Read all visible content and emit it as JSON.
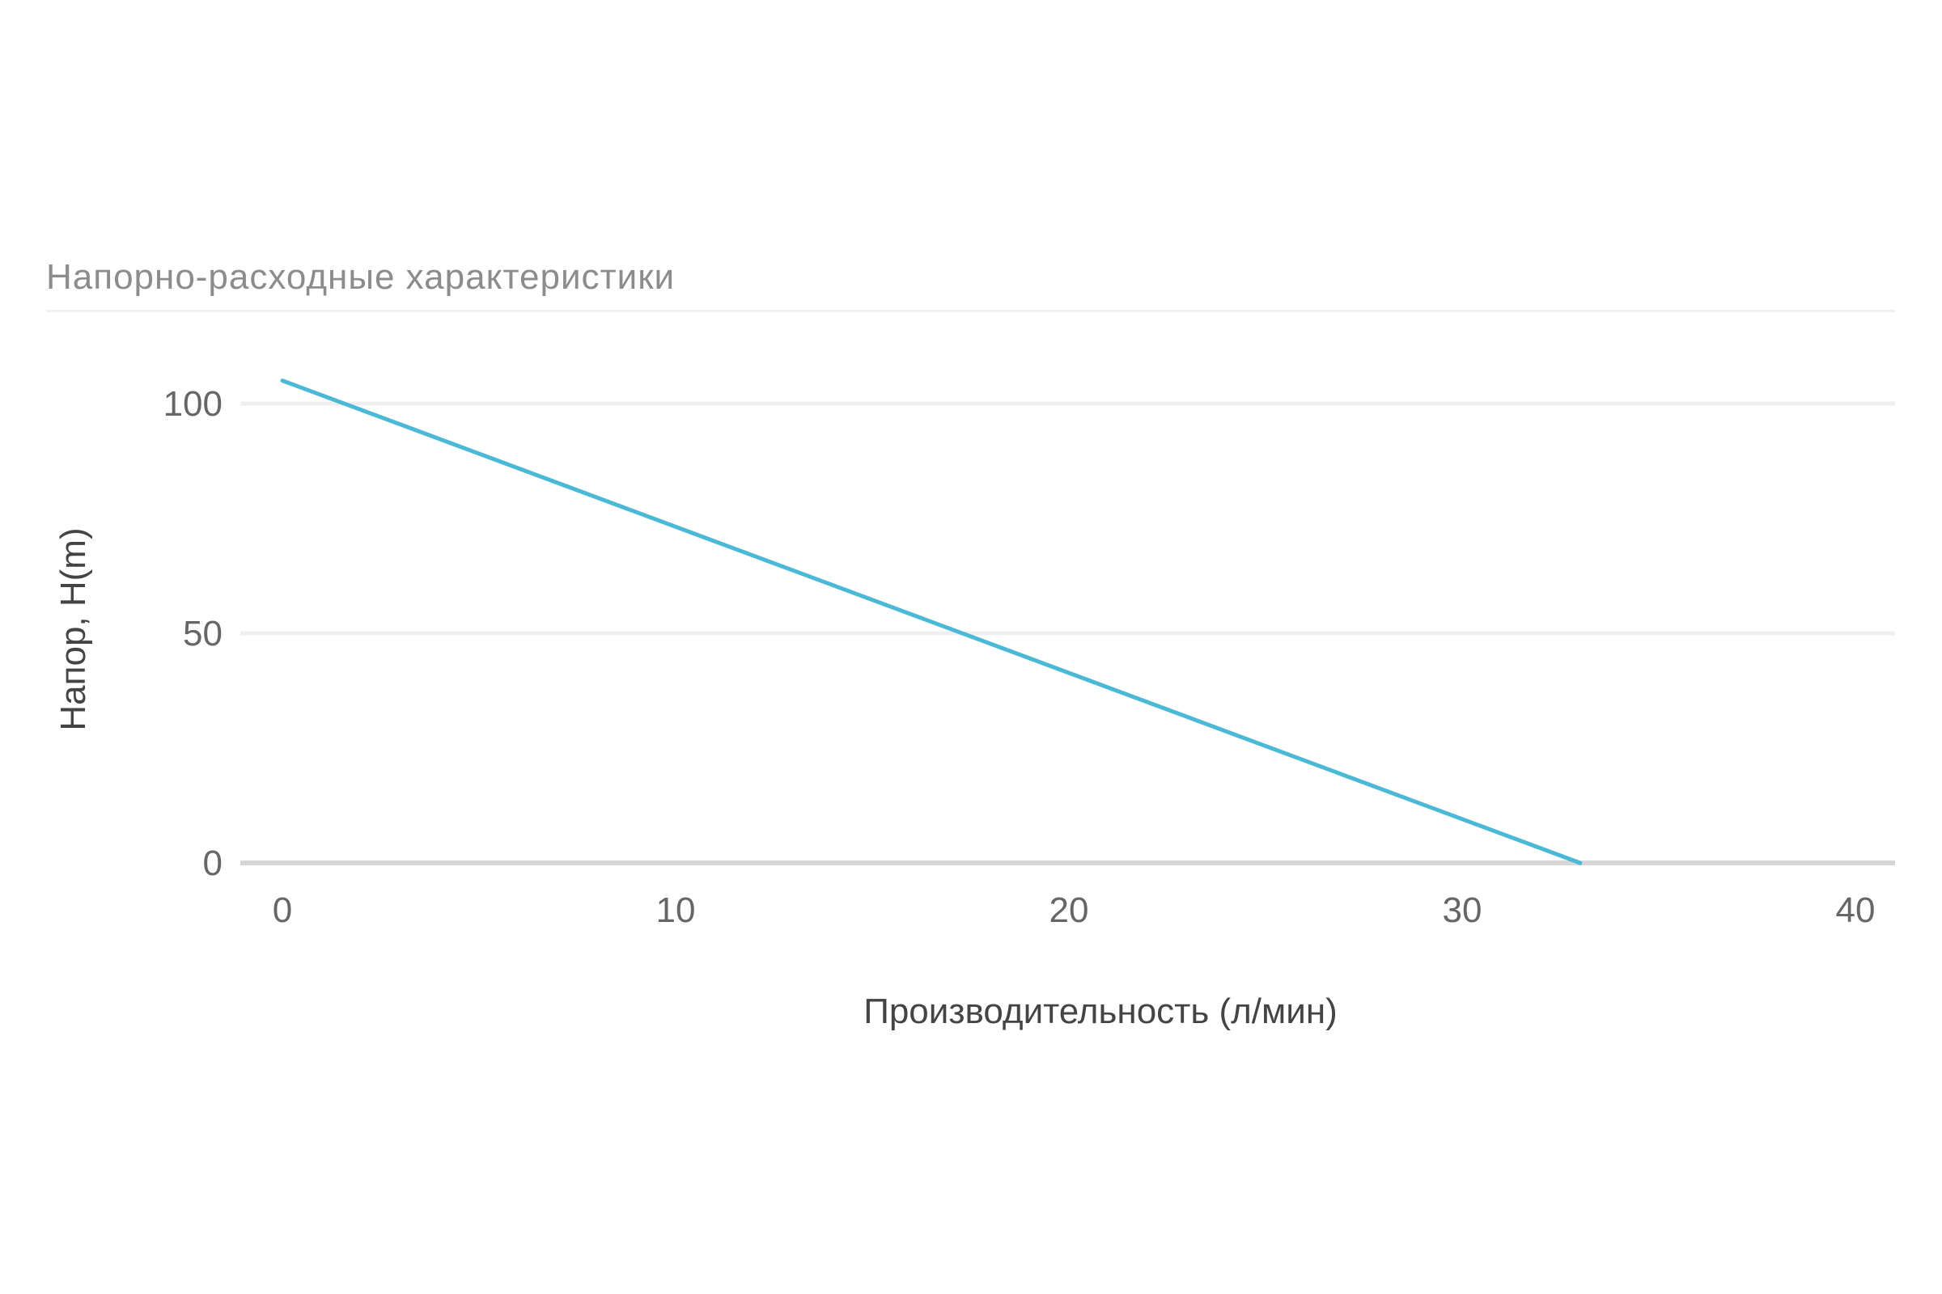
{
  "chart_data": {
    "type": "line",
    "title": "Напорно-расходные характеристики",
    "xlabel": "Производительность (л/мин)",
    "ylabel": "Напор, H(m)",
    "xlim": [
      0,
      40
    ],
    "ylim": [
      0,
      100
    ],
    "x_ticks": [
      0,
      10,
      20,
      30,
      40
    ],
    "y_ticks": [
      0,
      50,
      100
    ],
    "grid": true,
    "legend": "none",
    "series": [
      {
        "color": "#4bb8d6",
        "x": [
          0,
          33
        ],
        "y": [
          105,
          0
        ]
      }
    ]
  }
}
